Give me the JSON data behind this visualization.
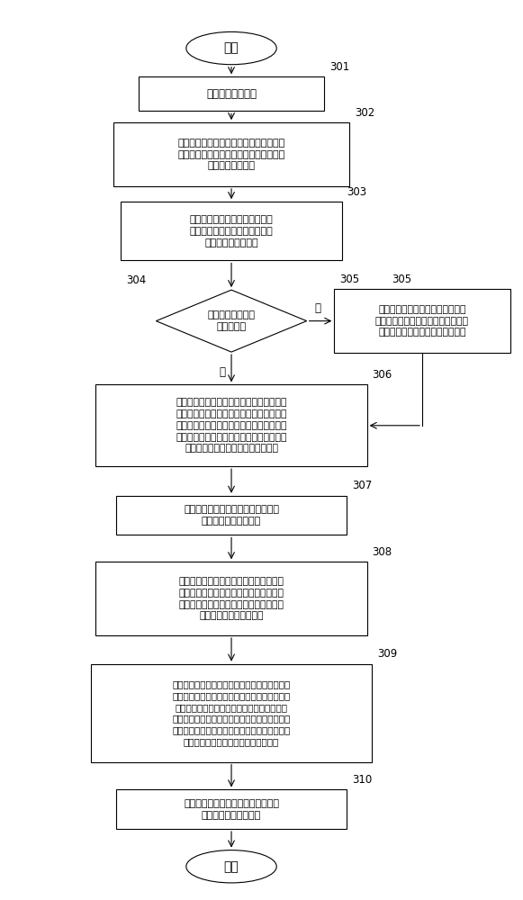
{
  "bg_color": "#ffffff",
  "start_text": "开始",
  "end_text": "结束",
  "node_301_text": "启动所述监测系统",
  "node_302_text": "如本次测量需要使用新的测量参数或网络\n参数，用户打开参数配置对话框，进入相\n应页面做参数修改",
  "node_303_text": "进入光开关选择菜单，选择一路\n光开关，准备对与之连接的多级\n无源光网络进行测量",
  "node_304_text": "是否需要重新测量\n参考数据？",
  "node_305_text": "从参考数据文件加载参考数据，同\n时，显示单元根据所该参考数据生成\n相应的参考数据迹线图与数据表格",
  "node_306_text": "首次测量，在模式选框中选择参考模式，点\n击运行按钮，开始测量参考数据。完毕后，\n自动保存参考数据到外部数据库的参考数据\n文件。同时，显示单元根据所测参考数据生\n成相应的参考数据迹线图与数据表格",
  "node_307_text": "用户使用辅助功能对迹线图、拓扑图\n进行进一步查看与分析",
  "node_308_text": "在光路设置菜单中选择合适的节点设置方\n式，针对所选方式设置网络节点，以完成\n参考数据与被测多级无源光网络的匹配关\n系，并生成该网络拓扑图",
  "node_309_text": "在模式菜单中选择测量模式，点击运行按钮，再\n次测量完成后自动进入事件分析，经过事件分析\n得出结果数据。同时，显示测量结果的提示消\n息，在迹线图中添加一条再次测量的迹线，生成\n一张测量数据的数据表格，如果检测到故障点，\n则还在拓扑图相应位置添加故障点标记",
  "node_310_text": "用户使用辅助功能对迹线图、拓扑图\n进行进一步查看与分析",
  "label_no": "否",
  "label_yes": "是",
  "labels": {
    "301": "301",
    "302": "302",
    "303": "303",
    "304": "304",
    "305": "305",
    "306": "306",
    "307": "307",
    "308": "308",
    "309": "309",
    "310": "310"
  }
}
